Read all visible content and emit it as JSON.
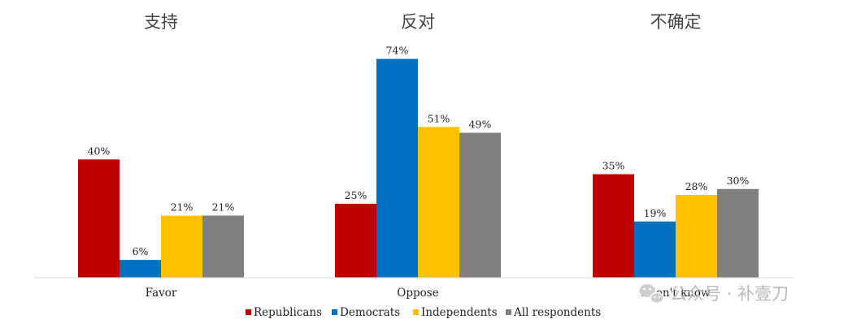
{
  "chart_data": {
    "type": "bar",
    "group_titles": [
      "支持",
      "反对",
      "不确定"
    ],
    "categories": [
      "Favor",
      "Oppose",
      "I don't know"
    ],
    "series": [
      {
        "name": "Republicans",
        "color": "#C00000",
        "values": [
          40,
          25,
          35
        ]
      },
      {
        "name": "Democrats",
        "color": "#0070C0",
        "values": [
          6,
          74,
          19
        ]
      },
      {
        "name": "Independents",
        "color": "#FFC000",
        "values": [
          21,
          51,
          28
        ]
      },
      {
        "name": "All respondents",
        "color": "#7F7F7F",
        "values": [
          21,
          49,
          30
        ]
      }
    ],
    "value_suffix": "%",
    "ylim": [
      0,
      78
    ],
    "grid": false,
    "legend": "bottom"
  },
  "watermark": {
    "icon": "wechat-icon",
    "text": "公众号 · 补壹刀"
  }
}
